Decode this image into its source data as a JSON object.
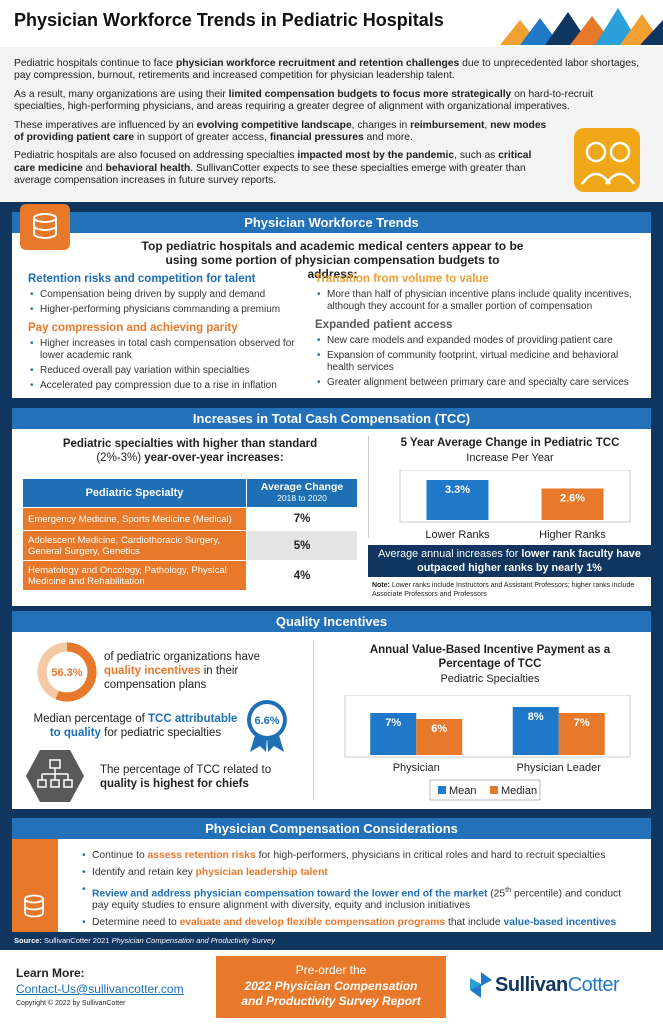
{
  "header": {
    "title": "Physician Workforce Trends in Pediatric Hospitals"
  },
  "intro": {
    "paragraphs": [
      [
        {
          "text": "Pediatric hospitals continue to face "
        },
        {
          "text": "physician workforce recruitment and retention challenges",
          "style": "bold"
        },
        {
          "text": " due to unprecedented labor shortages, pay compression, burnout, retirements and increased competition for physician leadership talent."
        }
      ],
      [
        {
          "text": "As a result, many organizations are using their "
        },
        {
          "text": "limited compensation budgets to focus more strategically",
          "style": "bold"
        },
        {
          "text": " on hard-to-recruit specialties, high-performing physicians, and areas requiring a greater degree of alignment with organizational imperatives."
        }
      ],
      [
        {
          "text": "These imperatives are influenced by an "
        },
        {
          "text": "evolving competitive landscape",
          "style": "bold"
        },
        {
          "text": ", changes in "
        },
        {
          "text": "reimbursement",
          "style": "bold"
        },
        {
          "text": ", "
        },
        {
          "text": "new modes of providing patient care",
          "style": "bold"
        },
        {
          "text": " in support of greater access, "
        },
        {
          "text": "financial pressures",
          "style": "bold"
        },
        {
          "text": " and more."
        }
      ],
      [
        {
          "text": "Pediatric hospitals are also focused on addressing specialties "
        },
        {
          "text": "impacted most by the pandemic",
          "style": "bold"
        },
        {
          "text": ", such as "
        },
        {
          "text": "critical care medicine",
          "style": "bold"
        },
        {
          "text": " and "
        },
        {
          "text": "behavioral health",
          "style": "bold"
        },
        {
          "text": ". SullivanCotter expects to see these specialties emerge with greater than average compensation increases in future survey reports."
        }
      ]
    ]
  },
  "workforce_trends": {
    "title": "Physician Workforce Trends",
    "subtitle": "Top pediatric hospitals and academic medical centers appear to be using some portion of physician compensation budgets to address:",
    "groups": [
      {
        "heading": "Retention risks and competition for talent",
        "color": "#1f6fb5",
        "bullets": [
          "Compensation being driven by supply and demand",
          "Higher-performing physicians commanding a premium"
        ]
      },
      {
        "heading": "Pay compression and achieving parity",
        "color": "#e8792b",
        "bullets": [
          "Higher increases in total cash compensation observed for lower academic rank",
          "Reduced overall pay variation within specialties",
          "Accelerated  pay compression due to a rise in inflation"
        ]
      },
      {
        "heading": "Transition from volume to value",
        "color": "#f0a030",
        "bullets": [
          "More than half of physician incentive plans include quality incentives, although they account for a smaller portion of compensation"
        ]
      },
      {
        "heading": "Expanded patient access",
        "color": "#5a5a5a",
        "bullets": [
          "New care models and expanded modes of providing patient care",
          "Expansion of community footprint, virtual medicine and behavioral health services",
          "Greater alignment between primary care and specialty care services"
        ]
      }
    ]
  },
  "tcc": {
    "title": "Increases in Total Cash Compensation (TCC)",
    "table_title": [
      {
        "text": "Pediatric specialties with higher than standard ",
        "style": "bold"
      },
      {
        "text": "(2%-3%) "
      },
      {
        "text": "year-over-year increases:",
        "style": "bold"
      }
    ],
    "table": {
      "header": [
        "Pediatric Specialty",
        "Average Change",
        "2018 to 2020"
      ],
      "rows": [
        [
          "Emergency Medicine, Sports Medicine (Medical)",
          "7%"
        ],
        [
          "Adolescent Medicine, Cardiothoracic Surgery, General Surgery, Genetics",
          "5%"
        ],
        [
          "Hematology and Oncology, Pathology, Physical Medicine and Rehabilitation",
          "4%"
        ]
      ]
    },
    "chart_data": {
      "type": "bar",
      "title": "5 Year Average Change in Pediatric TCC",
      "subtitle": "Increase Per Year",
      "categories": [
        "Lower Ranks",
        "Higher Ranks"
      ],
      "values": [
        3.3,
        2.6
      ],
      "value_labels": [
        "3.3%",
        "2.6%"
      ],
      "colors": [
        "#1f78c8",
        "#e8792b"
      ]
    },
    "callout": [
      {
        "text": "Average annual increases for "
      },
      {
        "text": "lower rank faculty have outpaced higher ranks by nearly 1%",
        "style": "bold"
      }
    ],
    "note": [
      {
        "text": "Note:",
        "style": "bold"
      },
      {
        "text": " Lower ranks include Instructors and Assistant Professors; higher ranks include Associate Professors and Professors"
      }
    ]
  },
  "quality": {
    "title": "Quality Incentives",
    "stat": {
      "value": 56.3,
      "value_label": "56.3%"
    },
    "stat_text": [
      {
        "text": "of pediatric organizations have "
      },
      {
        "text": "quality incentives",
        "style": "orange"
      },
      {
        "text": " in their compensation plans"
      }
    ],
    "median_text": [
      {
        "text": "Median percentage of "
      },
      {
        "text": "TCC attributable to quality",
        "style": "blue"
      },
      {
        "text": " for pediatric specialties"
      }
    ],
    "median_badge": "6.6%",
    "chiefs_text": [
      {
        "text": "The percentage of TCC related to "
      },
      {
        "text": "quality is highest for chiefs",
        "style": "bold"
      }
    ],
    "chart_data": {
      "type": "grouped_bar",
      "title": "Annual Value-Based Incentive Payment as a Percentage of TCC",
      "subtitle": "Pediatric Specialties",
      "categories": [
        "Physician",
        "Physician Leader"
      ],
      "series": [
        {
          "name": "Mean",
          "color": "#1f78c8",
          "values": [
            7,
            8
          ],
          "value_labels": [
            "7%",
            "8%"
          ]
        },
        {
          "name": "Median",
          "color": "#e8792b",
          "values": [
            6,
            7
          ],
          "value_labels": [
            "6%",
            "7%"
          ]
        }
      ],
      "legend": "bottom"
    }
  },
  "considerations": {
    "title": "Physician Compensation Considerations",
    "bullets": [
      [
        {
          "text": "Continue to "
        },
        {
          "text": "assess retention risks",
          "style": "orange"
        },
        {
          "text": " for high-performers, physicians in critical roles and hard to recruit specialties"
        }
      ],
      [
        {
          "text": "Identify and retain key "
        },
        {
          "text": "physician leadership talent",
          "style": "orange"
        }
      ],
      [
        {
          "text": "Review and address physician compensation toward the lower end of the market",
          "style": "blue"
        },
        {
          "text": " (25"
        },
        {
          "text": "th",
          "style": "sup"
        },
        {
          "text": " percentile)  and conduct pay equity studies to ensure alignment with diversity, equity and inclusion initiatives"
        }
      ],
      [
        {
          "text": "Determine need to "
        },
        {
          "text": "evaluate and develop flexible compensation programs",
          "style": "orange"
        },
        {
          "text": " that include "
        },
        {
          "text": "value-based incentives",
          "style": "blue"
        }
      ]
    ]
  },
  "source": [
    {
      "text": "Source:",
      "style": "bold"
    },
    {
      "text": " SullivanCotter 2021 "
    },
    {
      "text": "Physician Compensation and Productivity Survey",
      "style": "italic"
    }
  ],
  "footer": {
    "learn_more": "Learn More:",
    "email": "Contact-Us@sullivancotter.com",
    "copyright": "Copyright © 2022 by SullivanCotter",
    "button_line1": "Pre-order the",
    "button_line2": "2022 Physician Compensation and Productivity Survey Report",
    "logo_part1": "Sullivan",
    "logo_part2": "Cotter"
  }
}
